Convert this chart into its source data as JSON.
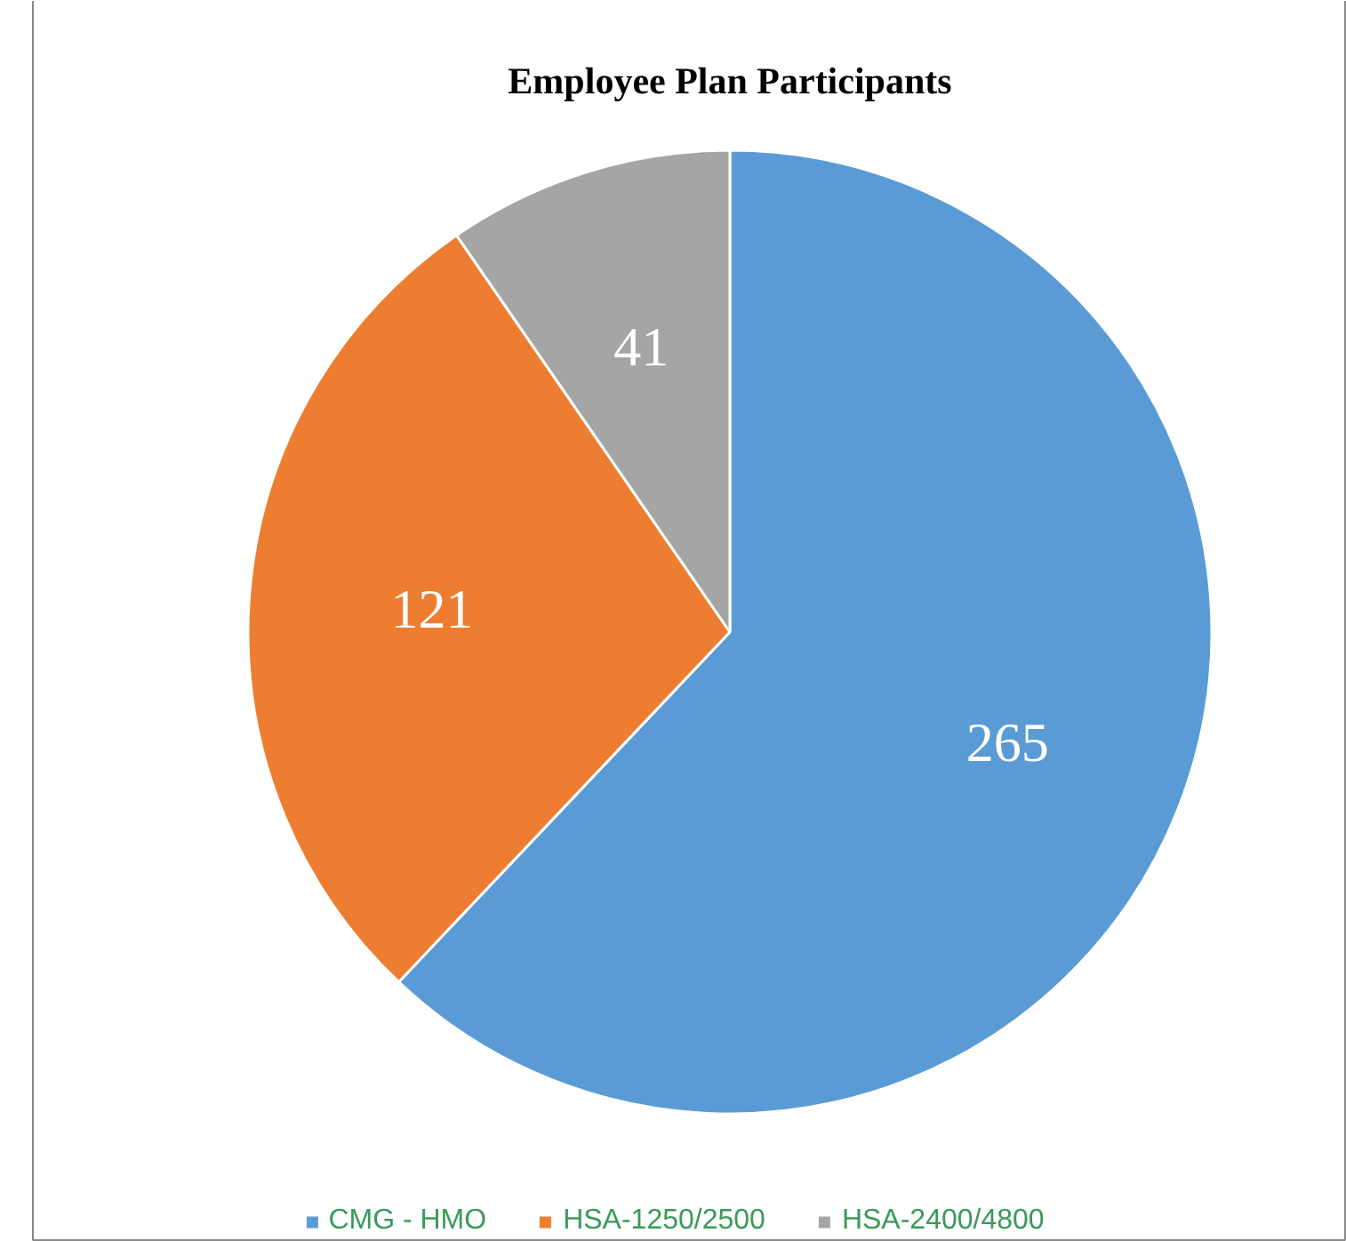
{
  "chart_data": {
    "type": "pie",
    "title": "Employee Plan Participants",
    "categories": [
      "CMG - HMO",
      "HSA-1250/2500",
      "HSA-2400/4800"
    ],
    "values": [
      265,
      121,
      41
    ],
    "colors": [
      "#5b9bd5",
      "#ed7d31",
      "#a5a5a5"
    ],
    "data_labels": true,
    "legend": "bottom"
  }
}
